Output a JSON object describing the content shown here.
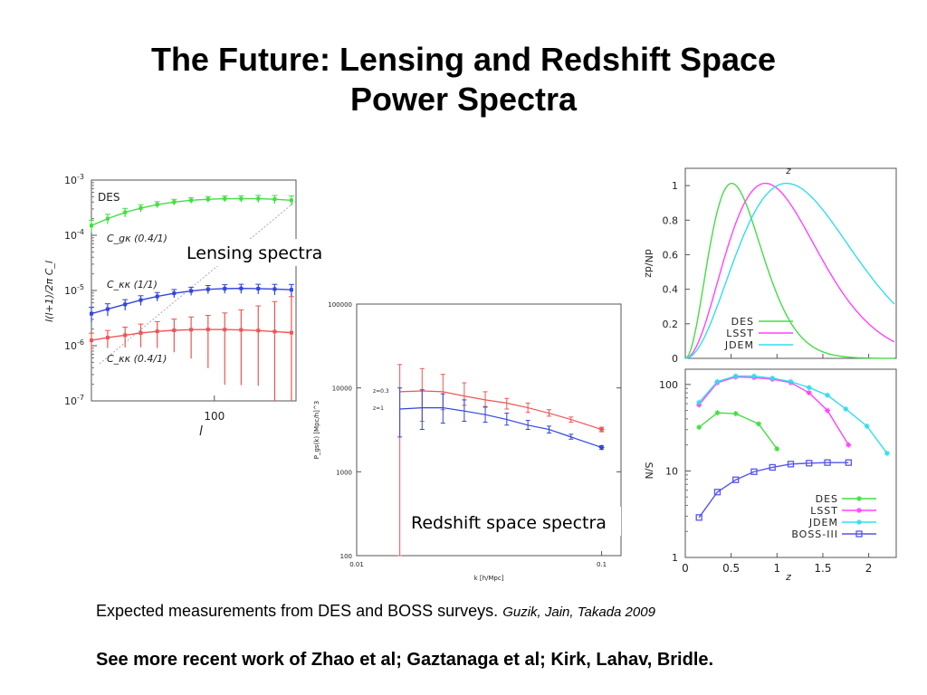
{
  "title": {
    "line1": "The Future: Lensing and Redshift Space",
    "line2": "Power Spectra"
  },
  "caption": {
    "text": "Expected measurements from DES and BOSS surveys.",
    "cite": "Guzik, Jain, Takada 2009"
  },
  "footer": "See more recent work of Zhao et al; Gaztanaga et al; Kirk, Lahav, Bridle.",
  "overlays": {
    "lensing": "Lensing spectra",
    "redshift": "Redshift space spectra"
  },
  "colors": {
    "green": "#44dd44",
    "blue": "#3344dd",
    "red": "#ee5555",
    "magenta": "#ff44ff",
    "cyan": "#33ddee",
    "purple": "#5555ee"
  },
  "chart_data": [
    {
      "id": "lensing",
      "type": "line",
      "xlabel": "l",
      "ylabel": "l(l+1)/2π C_l",
      "yscale": "log",
      "ylim": [
        1e-07,
        0.001
      ],
      "xscale": "log",
      "xlim": [
        45,
        170
      ],
      "x_tick_labels": [
        "100"
      ],
      "y_tick_labels": [
        "10^-3",
        "10^-4",
        "10^-5",
        "10^-6",
        "10^-7"
      ],
      "annotations": [
        "DES"
      ],
      "series": [
        {
          "name": "C_gκ (0.4/1)",
          "color": "green",
          "x": [
            45,
            50,
            56,
            62,
            69,
            77,
            86,
            96,
            107,
            119,
            133,
            148,
            165
          ],
          "y": [
            0.00015,
            0.0002,
            0.00026,
            0.00031,
            0.00036,
            0.0004,
            0.00043,
            0.00045,
            0.00046,
            0.00046,
            0.00046,
            0.00045,
            0.00043
          ],
          "err_frac": [
            0.25,
            0.2,
            0.18,
            0.15,
            0.13,
            0.12,
            0.12,
            0.12,
            0.12,
            0.13,
            0.15,
            0.17,
            0.2
          ]
        },
        {
          "name": "C_κκ (1/1)",
          "color": "blue",
          "x": [
            45,
            50,
            56,
            62,
            69,
            77,
            86,
            96,
            107,
            119,
            133,
            148,
            165
          ],
          "y": [
            3.8e-06,
            4.6e-06,
            5.6e-06,
            6.7e-06,
            7.8e-06,
            8.9e-06,
            9.8e-06,
            1.05e-05,
            1.08e-05,
            1.09e-05,
            1.08e-05,
            1.06e-05,
            1.03e-05
          ],
          "err_frac": [
            0.3,
            0.25,
            0.22,
            0.2,
            0.18,
            0.17,
            0.17,
            0.17,
            0.18,
            0.19,
            0.2,
            0.22,
            0.25
          ]
        },
        {
          "name": "C_κκ (0.4/1)",
          "color": "red",
          "x": [
            45,
            50,
            56,
            62,
            69,
            77,
            86,
            96,
            107,
            119,
            133,
            148,
            165
          ],
          "y": [
            1.25e-06,
            1.4e-06,
            1.55e-06,
            1.7e-06,
            1.82e-06,
            1.9e-06,
            1.95e-06,
            1.97e-06,
            1.96e-06,
            1.93e-06,
            1.88e-06,
            1.8e-06,
            1.72e-06
          ],
          "err_frac": [
            0.35,
            0.35,
            0.4,
            0.45,
            0.5,
            0.6,
            0.7,
            0.8,
            1.0,
            1.3,
            1.8,
            2.5,
            3.5
          ]
        }
      ]
    },
    {
      "id": "redshift",
      "type": "line",
      "xlabel": "k [h/Mpc]",
      "ylabel": "P_gs(k) [Mpc/h]^3",
      "yscale": "log",
      "ylim": [
        100,
        100000
      ],
      "xscale": "log",
      "xlim": [
        0.01,
        0.12
      ],
      "x_tick_labels": [
        "0.01",
        "0.1"
      ],
      "y_tick_labels": [
        "100000",
        "10000",
        "1000",
        "100"
      ],
      "series": [
        {
          "name": "z=0.3",
          "color": "red",
          "x": [
            0.015,
            0.0185,
            0.0225,
            0.0275,
            0.0335,
            0.041,
            0.05,
            0.061,
            0.075,
            0.1
          ],
          "y": [
            9000,
            9200,
            9000,
            8000,
            7200,
            6600,
            5800,
            5000,
            4200,
            3200
          ],
          "err": [
            [
              100,
              19000
            ],
            [
              4000,
              17000
            ],
            [
              5500,
              14500
            ],
            [
              6200,
              11500
            ],
            [
              6000,
              9000
            ],
            [
              5600,
              7500
            ],
            [
              5100,
              6600
            ],
            [
              4600,
              5500
            ],
            [
              3900,
              4500
            ],
            [
              3000,
              3400
            ]
          ]
        },
        {
          "name": "z=1",
          "color": "blue",
          "x": [
            0.015,
            0.0185,
            0.0225,
            0.0275,
            0.0335,
            0.041,
            0.05,
            0.061,
            0.075,
            0.1
          ],
          "y": [
            5600,
            5800,
            5800,
            5300,
            4800,
            4200,
            3600,
            3200,
            2600,
            1950
          ],
          "err": [
            [
              2600,
              10000
            ],
            [
              3200,
              9500
            ],
            [
              3800,
              8500
            ],
            [
              4000,
              7200
            ],
            [
              3900,
              5900
            ],
            [
              3600,
              5000
            ],
            [
              3200,
              4100
            ],
            [
              2900,
              3500
            ],
            [
              2450,
              2800
            ],
            [
              1850,
              2050
            ]
          ]
        }
      ]
    },
    {
      "id": "dndz",
      "type": "line",
      "xlabel": "z",
      "ylabel": "dN/dz",
      "xlim": [
        0,
        2.3
      ],
      "ylim": [
        0,
        1.1
      ],
      "y_tick_labels": [
        "1",
        "0.8",
        "0.6",
        "0.4",
        "0.2",
        "0"
      ],
      "series": [
        {
          "name": "DES",
          "color": "green",
          "peak": 0.55,
          "width": 0.28
        },
        {
          "name": "LSST",
          "color": "magenta",
          "peak": 0.95,
          "width": 0.45
        },
        {
          "name": "JDEM",
          "color": "cyan",
          "peak": 1.2,
          "width": 0.6
        }
      ]
    },
    {
      "id": "sn",
      "type": "line",
      "xlabel": "z",
      "ylabel": "S/N",
      "yscale": "log",
      "xlim": [
        0,
        2.3
      ],
      "ylim": [
        1,
        150
      ],
      "x_tick_labels": [
        "0",
        "0.5",
        "1",
        "1.5",
        "2"
      ],
      "y_tick_labels": [
        "100",
        "10",
        "1"
      ],
      "series": [
        {
          "name": "DES",
          "color": "green",
          "x": [
            0.15,
            0.35,
            0.55,
            0.8,
            1.0
          ],
          "y": [
            32,
            47,
            46,
            35,
            18
          ]
        },
        {
          "name": "LSST",
          "color": "magenta",
          "x": [
            0.15,
            0.35,
            0.55,
            0.75,
            0.95,
            1.15,
            1.35,
            1.55,
            1.78
          ],
          "y": [
            58,
            105,
            122,
            120,
            115,
            105,
            80,
            50,
            20
          ]
        },
        {
          "name": "JDEM",
          "color": "cyan",
          "x": [
            0.15,
            0.35,
            0.55,
            0.75,
            0.95,
            1.15,
            1.35,
            1.55,
            1.75,
            1.98,
            2.2
          ],
          "y": [
            62,
            108,
            125,
            125,
            118,
            108,
            92,
            75,
            52,
            33,
            16
          ]
        },
        {
          "name": "BOSS-III",
          "color": "purple",
          "x": [
            0.15,
            0.35,
            0.55,
            0.75,
            0.95,
            1.15,
            1.35,
            1.55,
            1.78
          ],
          "y": [
            2.9,
            5.7,
            7.9,
            9.8,
            11,
            12,
            12.3,
            12.5,
            12.5
          ]
        }
      ]
    }
  ]
}
